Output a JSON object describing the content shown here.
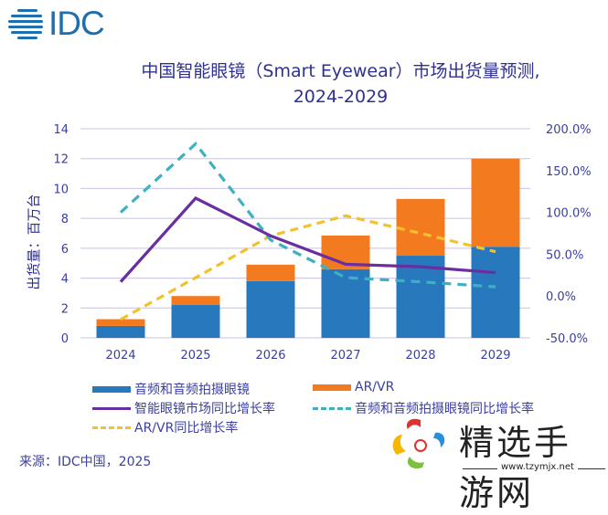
{
  "brand": {
    "logo_text": "IDC",
    "color": "#1d6fb0"
  },
  "title": {
    "line1": "中国智能眼镜（Smart Eyewear）市场出货量预测,",
    "line2": "2024-2029"
  },
  "source": "来源：IDC中国，2025",
  "watermark": {
    "text": "精选手游网",
    "url": "www.tzymjx.net"
  },
  "colors": {
    "audio": "#2878be",
    "arvr": "#f47a20",
    "total_growth": "#6a2ea0",
    "audio_growth": "#3fb0c4",
    "arvr_growth": "#f2c12e",
    "grid": "#c8c0ee",
    "text": "#3b3fa0"
  },
  "chart_data": {
    "type": "bar",
    "title": "中国智能眼镜（Smart Eyewear）市场出货量预测, 2024-2029",
    "categories": [
      "2024",
      "2025",
      "2026",
      "2027",
      "2028",
      "2029"
    ],
    "ylabel": "出货量：百万台",
    "ylim": [
      0,
      14
    ],
    "yticks": [
      "0",
      "2",
      "4",
      "6",
      "8",
      "10",
      "12",
      "14"
    ],
    "y2lim": [
      -50,
      200
    ],
    "y2ticks": [
      "-50.0%",
      "0.0%",
      "50.0%",
      "100.0%",
      "150.0%",
      "200.0%"
    ],
    "grid": true,
    "stacked": true,
    "legend_position": "bottom",
    "series": [
      {
        "name": "音频和音频拍摄眼镜",
        "type": "bar",
        "axis": "left",
        "values": [
          0.8,
          2.2,
          3.8,
          4.6,
          5.5,
          6.1
        ]
      },
      {
        "name": "AR/VR",
        "type": "bar",
        "axis": "left",
        "values": [
          0.45,
          0.6,
          1.1,
          2.25,
          3.8,
          5.9
        ]
      },
      {
        "name": "智能眼镜市场同比增长率",
        "type": "line",
        "axis": "right",
        "style": "solid",
        "values": [
          17,
          117,
          72,
          38,
          35,
          28
        ]
      },
      {
        "name": "音频和音频拍摄眼镜同比增长率",
        "type": "line",
        "axis": "right",
        "style": "dashed",
        "values": [
          100,
          182,
          67,
          22,
          17,
          11
        ]
      },
      {
        "name": "AR/VR同比增长率",
        "type": "line",
        "axis": "right",
        "style": "dashed",
        "values": [
          -28,
          22,
          72,
          96,
          75,
          53
        ]
      }
    ]
  }
}
